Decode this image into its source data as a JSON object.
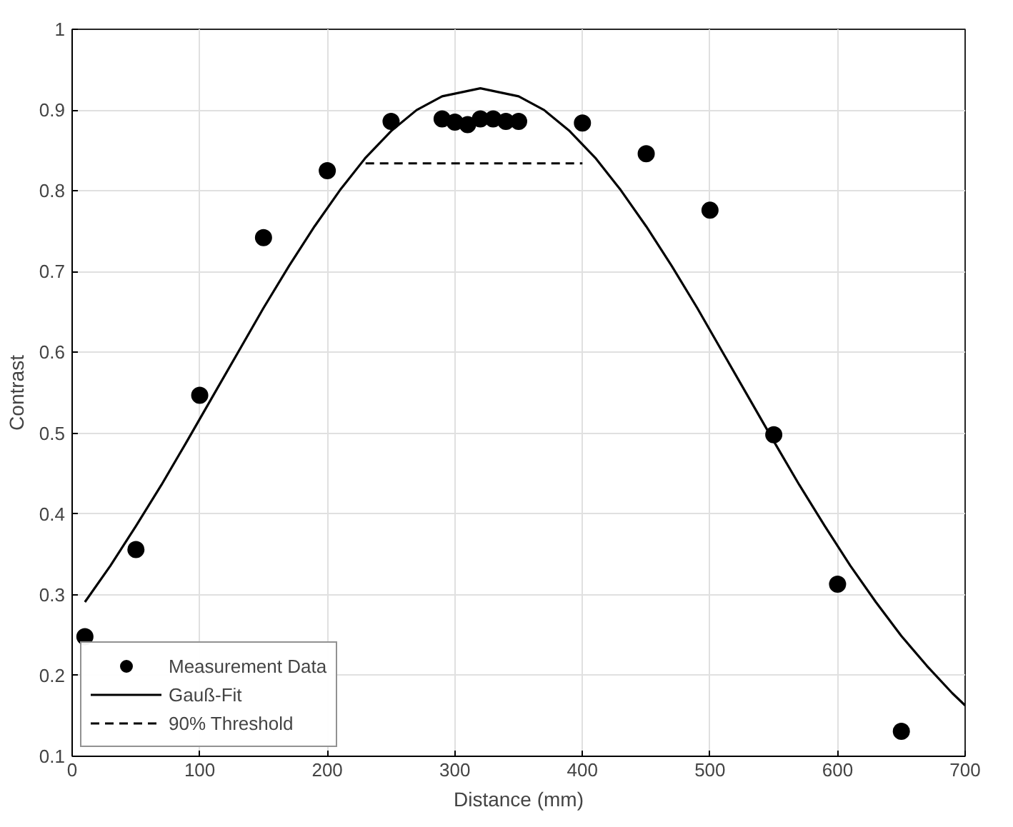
{
  "chart_data": {
    "type": "scatter",
    "xlabel": "Distance (mm)",
    "ylabel": "Contrast",
    "xlim": [
      0,
      700
    ],
    "ylim": [
      0.1,
      1
    ],
    "xticks": [
      0,
      100,
      200,
      300,
      400,
      500,
      600,
      700
    ],
    "yticks": [
      0.1,
      0.2,
      0.3,
      0.4,
      0.5,
      0.6,
      0.7,
      0.8,
      0.9,
      1
    ],
    "grid": true,
    "legend": "bottom left",
    "series": [
      {
        "name": "Measurement Data",
        "marker": "circle",
        "color": "#000000",
        "x": [
          10,
          50,
          100,
          150,
          200,
          250,
          290,
          300,
          310,
          320,
          330,
          340,
          350,
          400,
          450,
          500,
          550,
          600,
          650
        ],
        "values": [
          0.248,
          0.356,
          0.547,
          0.742,
          0.825,
          0.886,
          0.889,
          0.885,
          0.882,
          0.889,
          0.889,
          0.886,
          0.886,
          0.884,
          0.846,
          0.776,
          0.498,
          0.313,
          0.131
        ]
      },
      {
        "name": "Gauß-Fit",
        "type": "line",
        "line_style": "solid",
        "color": "#000000",
        "x": [
          10,
          30,
          50,
          70,
          90,
          110,
          130,
          150,
          170,
          190,
          210,
          230,
          250,
          270,
          290,
          320,
          350,
          370,
          390,
          410,
          430,
          450,
          470,
          490,
          510,
          530,
          550,
          570,
          590,
          610,
          630,
          650,
          670,
          690,
          700
        ],
        "values": [
          0.291,
          0.336,
          0.385,
          0.436,
          0.49,
          0.545,
          0.6,
          0.655,
          0.707,
          0.756,
          0.801,
          0.841,
          0.874,
          0.9,
          0.917,
          0.927,
          0.917,
          0.9,
          0.874,
          0.841,
          0.801,
          0.756,
          0.707,
          0.655,
          0.6,
          0.545,
          0.49,
          0.436,
          0.385,
          0.336,
          0.291,
          0.249,
          0.212,
          0.178,
          0.163
        ]
      },
      {
        "name": "90% Threshold",
        "type": "line",
        "line_style": "dashed",
        "color": "#000000",
        "x": [
          230,
          400
        ],
        "values": [
          0.834,
          0.834
        ]
      }
    ]
  }
}
